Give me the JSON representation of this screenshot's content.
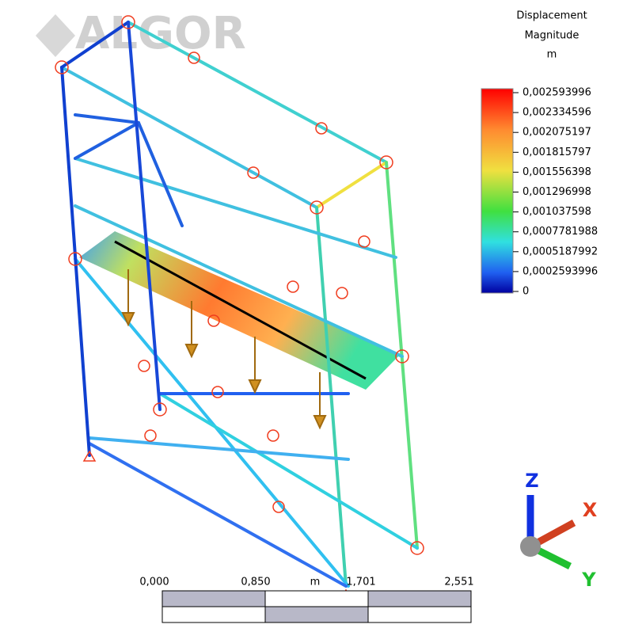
{
  "logo": "ALGOR",
  "legend": {
    "title": [
      "Displacement",
      "Magnitude",
      "m"
    ],
    "labels": [
      "0,002593996",
      "0,002334596",
      "0,002075197",
      "0,001815797",
      "0,001556398",
      "0,001296998",
      "0,001037598",
      "0,0007781988",
      "0,0005187992",
      "0,0002593996",
      "0"
    ]
  },
  "scale_bar": {
    "labels": [
      "0,000",
      "0,850",
      "1,701",
      "2,551"
    ],
    "unit": "m"
  },
  "triad": {
    "z": "Z",
    "x": "X",
    "y": "Y"
  }
}
